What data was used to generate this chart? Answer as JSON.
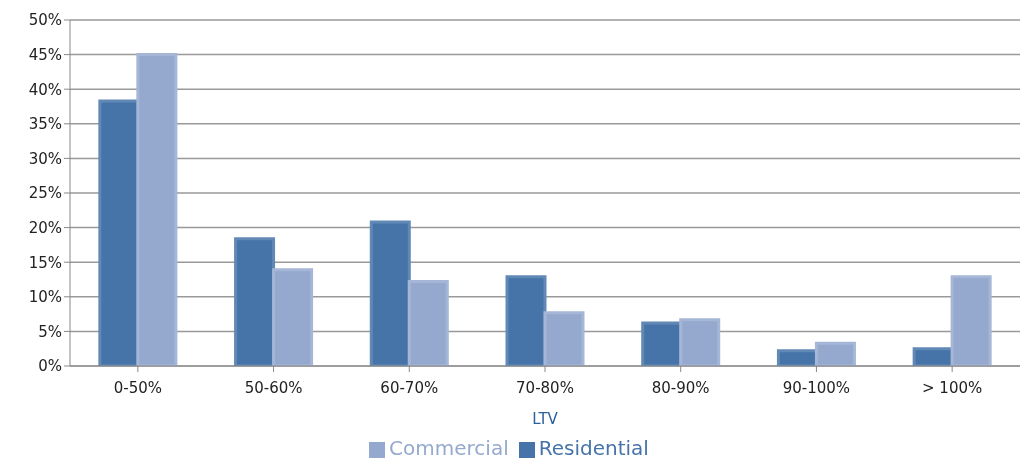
{
  "chart_data": {
    "type": "bar",
    "xlabel": "LTV",
    "categories": [
      "0-50%",
      "50-60%",
      "60-70%",
      "70-80%",
      "80-90%",
      "90-100%",
      "> 100%"
    ],
    "series": [
      {
        "name": "Residential",
        "color": "#4674a8",
        "values": [
          38.3,
          18.4,
          20.8,
          12.9,
          6.2,
          2.2,
          2.5
        ]
      },
      {
        "name": "Commercial",
        "color": "#95a9cf",
        "values": [
          45.0,
          13.9,
          12.2,
          7.7,
          6.7,
          3.3,
          12.9
        ]
      }
    ],
    "ylim": [
      0,
      50
    ],
    "yticks": [
      {
        "value": 0,
        "label": "0%"
      },
      {
        "value": 5,
        "label": "5%"
      },
      {
        "value": 10,
        "label": "10%"
      },
      {
        "value": 15,
        "label": "15%"
      },
      {
        "value": 20,
        "label": "20%"
      },
      {
        "value": 25,
        "label": "25%"
      },
      {
        "value": 30,
        "label": "30%"
      },
      {
        "value": 35,
        "label": "35%"
      },
      {
        "value": 40,
        "label": "40%"
      },
      {
        "value": 45,
        "label": "45%"
      },
      {
        "value": 50,
        "label": "50%"
      }
    ],
    "grid": "y",
    "legend": "bottom"
  }
}
